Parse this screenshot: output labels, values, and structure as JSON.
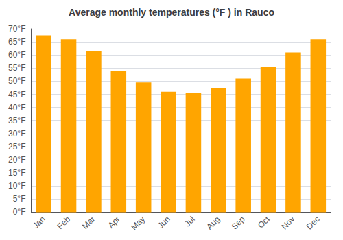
{
  "chart_data": {
    "type": "bar",
    "title": "Average monthly temperatures (°F ) in Rauco",
    "categories": [
      "Jan",
      "Feb",
      "Mar",
      "Apr",
      "May",
      "Jun",
      "Jul",
      "Aug",
      "Sep",
      "Oct",
      "Nov",
      "Dec"
    ],
    "values": [
      67.5,
      66.0,
      61.5,
      54.0,
      49.5,
      46.0,
      45.5,
      47.5,
      51.0,
      55.5,
      61.0,
      66.0
    ],
    "color": "#FFA500",
    "ylim": [
      0,
      70
    ],
    "yticks": [
      {
        "value": 0,
        "label": "0°F"
      },
      {
        "value": 5,
        "label": "5°F"
      },
      {
        "value": 10,
        "label": "10°F"
      },
      {
        "value": 15,
        "label": "15°F"
      },
      {
        "value": 20,
        "label": "20°F"
      },
      {
        "value": 25,
        "label": "25°F"
      },
      {
        "value": 30,
        "label": "30°F"
      },
      {
        "value": 35,
        "label": "35°F"
      },
      {
        "value": 40,
        "label": "40°F"
      },
      {
        "value": 45,
        "label": "45°F"
      },
      {
        "value": 50,
        "label": "50°F"
      },
      {
        "value": 55,
        "label": "55°F"
      },
      {
        "value": 60,
        "label": "60°F"
      },
      {
        "value": 65,
        "label": "65°F"
      },
      {
        "value": 70,
        "label": "70°F"
      }
    ],
    "grid": true
  }
}
